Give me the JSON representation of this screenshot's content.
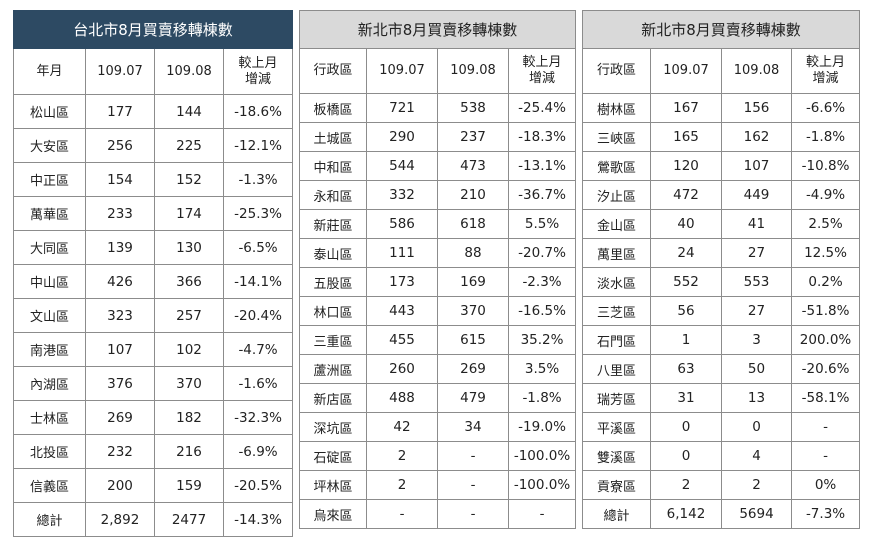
{
  "tables": [
    {
      "title": "台北市8月買賣移轉棟數",
      "headers": [
        "年月",
        "109.07",
        "109.08",
        "較上月\n增減"
      ],
      "rows": [
        [
          "松山區",
          "177",
          "144",
          "-18.6%"
        ],
        [
          "大安區",
          "256",
          "225",
          "-12.1%"
        ],
        [
          "中正區",
          "154",
          "152",
          "-1.3%"
        ],
        [
          "萬華區",
          "233",
          "174",
          "-25.3%"
        ],
        [
          "大同區",
          "139",
          "130",
          "-6.5%"
        ],
        [
          "中山區",
          "426",
          "366",
          "-14.1%"
        ],
        [
          "文山區",
          "323",
          "257",
          "-20.4%"
        ],
        [
          "南港區",
          "107",
          "102",
          "-4.7%"
        ],
        [
          "內湖區",
          "376",
          "370",
          "-1.6%"
        ],
        [
          "士林區",
          "269",
          "182",
          "-32.3%"
        ],
        [
          "北投區",
          "232",
          "216",
          "-6.9%"
        ],
        [
          "信義區",
          "200",
          "159",
          "-20.5%"
        ],
        [
          "總計",
          "2,892",
          "2477",
          "-14.3%"
        ]
      ]
    },
    {
      "title": "新北市8月買賣移轉棟數",
      "headers": [
        "行政區",
        "109.07",
        "109.08",
        "較上月\n增減"
      ],
      "rows": [
        [
          "板橋區",
          "721",
          "538",
          "-25.4%"
        ],
        [
          "土城區",
          "290",
          "237",
          "-18.3%"
        ],
        [
          "中和區",
          "544",
          "473",
          "-13.1%"
        ],
        [
          "永和區",
          "332",
          "210",
          "-36.7%"
        ],
        [
          "新莊區",
          "586",
          "618",
          "5.5%"
        ],
        [
          "泰山區",
          "111",
          "88",
          "-20.7%"
        ],
        [
          "五股區",
          "173",
          "169",
          "-2.3%"
        ],
        [
          "林口區",
          "443",
          "370",
          "-16.5%"
        ],
        [
          "三重區",
          "455",
          "615",
          "35.2%"
        ],
        [
          "蘆洲區",
          "260",
          "269",
          "3.5%"
        ],
        [
          "新店區",
          "488",
          "479",
          "-1.8%"
        ],
        [
          "深坑區",
          "42",
          "34",
          "-19.0%"
        ],
        [
          "石碇區",
          "2",
          "-",
          "-100.0%"
        ],
        [
          "坪林區",
          "2",
          "-",
          "-100.0%"
        ],
        [
          "烏來區",
          "-",
          "-",
          "-"
        ]
      ]
    },
    {
      "title": "新北市8月買賣移轉棟數",
      "headers": [
        "行政區",
        "109.07",
        "109.08",
        "較上月\n增減"
      ],
      "rows": [
        [
          "樹林區",
          "167",
          "156",
          "-6.6%"
        ],
        [
          "三峽區",
          "165",
          "162",
          "-1.8%"
        ],
        [
          "鶯歌區",
          "120",
          "107",
          "-10.8%"
        ],
        [
          "汐止區",
          "472",
          "449",
          "-4.9%"
        ],
        [
          "金山區",
          "40",
          "41",
          "2.5%"
        ],
        [
          "萬里區",
          "24",
          "27",
          "12.5%"
        ],
        [
          "淡水區",
          "552",
          "553",
          "0.2%"
        ],
        [
          "三芝區",
          "56",
          "27",
          "-51.8%"
        ],
        [
          "石門區",
          "1",
          "3",
          "200.0%"
        ],
        [
          "八里區",
          "63",
          "50",
          "-20.6%"
        ],
        [
          "瑞芳區",
          "31",
          "13",
          "-58.1%"
        ],
        [
          "平溪區",
          "0",
          "0",
          "-"
        ],
        [
          "雙溪區",
          "0",
          "4",
          "-"
        ],
        [
          "貢寮區",
          "2",
          "2",
          "0%"
        ],
        [
          "總計",
          "6,142",
          "5694",
          "-7.3%"
        ]
      ]
    }
  ]
}
